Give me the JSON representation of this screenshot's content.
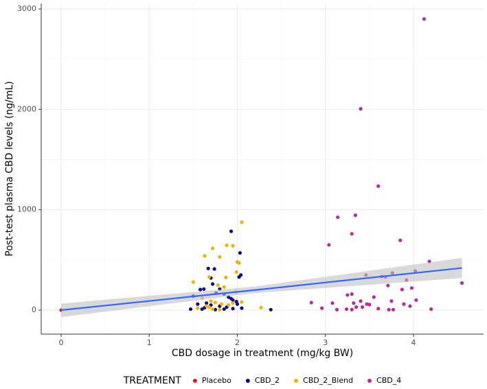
{
  "chart_data": {
    "type": "scatter",
    "x_label": "CBD dosage in treatment (mg/kg BW)",
    "y_label": "Post-test plasma CBD levels (ng/mL)",
    "legend_title": "TREATMENT",
    "legend_position": "bottom",
    "grid": true,
    "xlim": [
      -0.226,
      4.795
    ],
    "ylim": [
      -239,
      3055
    ],
    "xticks": [
      0,
      1,
      2,
      3,
      4
    ],
    "yticks": [
      0,
      1000,
      2000,
      3000
    ],
    "series": [
      {
        "name": "Placebo",
        "color": "#e31a1c",
        "x": [
          0
        ],
        "values": [
          0
        ]
      },
      {
        "name": "CBD_2",
        "color": "#0d0d8a",
        "x": [
          1.93,
          2.03,
          2.04,
          2.02,
          1.67,
          1.74,
          1.62,
          1.58,
          1.72,
          1.76,
          1.85,
          1.9,
          1.93,
          1.95,
          1.5,
          1.55,
          1.65,
          1.7,
          1.8,
          1.88,
          2.0,
          2.05,
          1.6,
          1.75,
          1.85,
          1.95,
          2.38,
          1.7,
          1.8,
          1.47,
          1.99,
          1.63
        ],
        "values": [
          785,
          570,
          350,
          330,
          415,
          410,
          210,
          205,
          260,
          170,
          160,
          130,
          115,
          100,
          140,
          60,
          70,
          50,
          40,
          30,
          60,
          20,
          10,
          5,
          10,
          15,
          5,
          320,
          210,
          10,
          85,
          25
        ]
      },
      {
        "name": "CBD_2_Blend",
        "color": "#f2b200",
        "x": [
          2.05,
          1.88,
          1.95,
          1.72,
          1.8,
          1.63,
          2.0,
          2.02,
          1.99,
          1.68,
          1.87,
          1.5,
          1.78,
          1.85,
          1.98,
          1.6,
          1.7,
          1.75,
          1.82,
          1.9,
          2.27,
          1.65,
          1.55,
          1.72,
          1.8,
          1.95,
          2.05,
          1.68
        ],
        "values": [
          875,
          645,
          640,
          615,
          530,
          540,
          480,
          470,
          380,
          330,
          325,
          280,
          250,
          230,
          180,
          120,
          90,
          75,
          60,
          50,
          25,
          40,
          20,
          10,
          5,
          70,
          80,
          30
        ]
      },
      {
        "name": "CBD_4",
        "color": "#b52a9e",
        "x": [
          4.12,
          3.4,
          3.6,
          3.34,
          3.14,
          3.3,
          3.04,
          3.85,
          4.18,
          4.02,
          3.46,
          3.76,
          3.64,
          3.68,
          3.92,
          3.71,
          4.55,
          3.98,
          3.87,
          3.3,
          3.25,
          3.55,
          3.4,
          2.84,
          3.08,
          3.32,
          3.47,
          3.5,
          3.75,
          3.89,
          4.03,
          3.96,
          3.24,
          2.96,
          3.13,
          3.3,
          3.6,
          3.72,
          3.77,
          3.42,
          3.35,
          4.2
        ],
        "values": [
          2900,
          2005,
          1235,
          945,
          925,
          760,
          650,
          695,
          485,
          390,
          350,
          370,
          335,
          330,
          300,
          245,
          270,
          220,
          205,
          160,
          150,
          130,
          90,
          75,
          70,
          70,
          60,
          55,
          90,
          60,
          100,
          40,
          10,
          20,
          5,
          5,
          15,
          5,
          5,
          30,
          30,
          10
        ]
      }
    ],
    "fit": {
      "color": "#3366ff",
      "band_color": "#bfbfbf",
      "x": [
        0,
        2.2,
        4.55
      ],
      "values": [
        0,
        200,
        420
      ],
      "lower": [
        -70,
        170,
        320
      ],
      "upper": [
        65,
        235,
        520
      ]
    }
  }
}
